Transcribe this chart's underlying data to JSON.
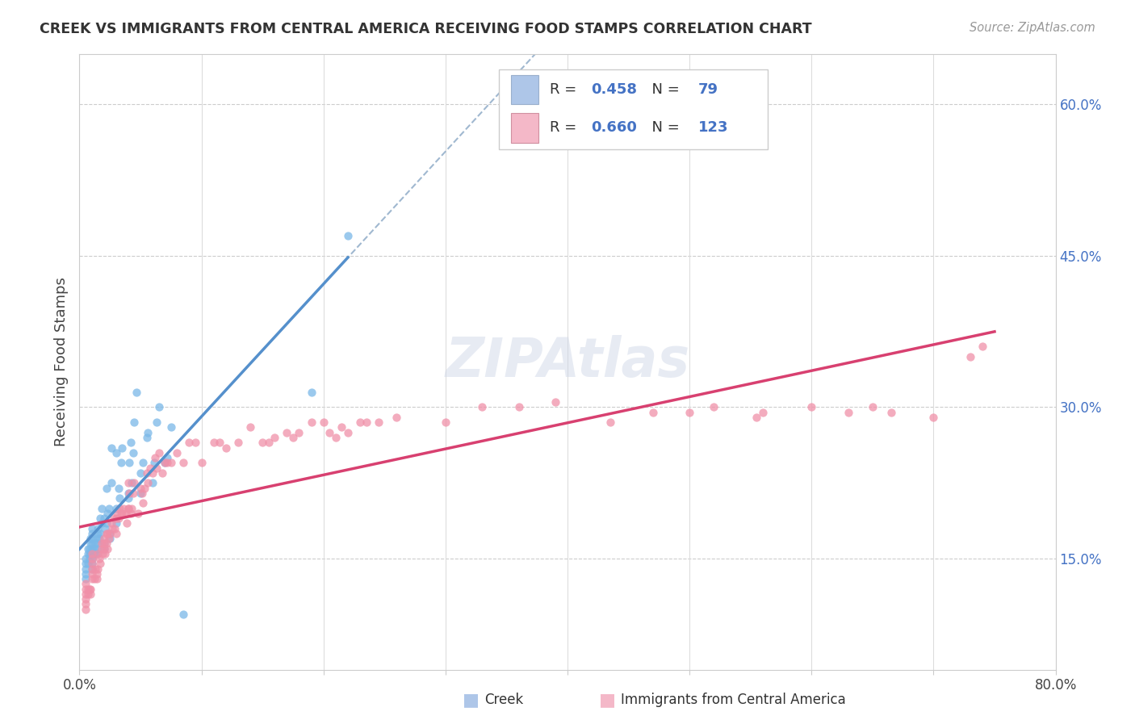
{
  "title": "CREEK VS IMMIGRANTS FROM CENTRAL AMERICA RECEIVING FOOD STAMPS CORRELATION CHART",
  "source_text": "Source: ZipAtlas.com",
  "ylabel": "Receiving Food Stamps",
  "x_min": 0.0,
  "x_max": 0.8,
  "y_min": 0.04,
  "y_max": 0.65,
  "x_ticks": [
    0.0,
    0.1,
    0.2,
    0.3,
    0.4,
    0.5,
    0.6,
    0.7,
    0.8
  ],
  "y_ticks_right": [
    0.15,
    0.3,
    0.45,
    0.6
  ],
  "y_tick_labels_right": [
    "15.0%",
    "30.0%",
    "45.0%",
    "60.0%"
  ],
  "legend_color1": "#aec6e8",
  "legend_color2": "#f4b8c8",
  "scatter_color1": "#7ab8e8",
  "scatter_color2": "#f090a8",
  "trendline_color1": "#5590cc",
  "trendline_color2": "#d84070",
  "dashed_line_color": "#a0b8d0",
  "creek_x": [
    0.005,
    0.005,
    0.005,
    0.005,
    0.005,
    0.007,
    0.007,
    0.007,
    0.008,
    0.008,
    0.008,
    0.009,
    0.009,
    0.009,
    0.01,
    0.01,
    0.01,
    0.01,
    0.01,
    0.01,
    0.01,
    0.01,
    0.01,
    0.012,
    0.012,
    0.013,
    0.014,
    0.014,
    0.015,
    0.015,
    0.015,
    0.015,
    0.016,
    0.017,
    0.017,
    0.018,
    0.018,
    0.02,
    0.02,
    0.02,
    0.021,
    0.022,
    0.022,
    0.023,
    0.024,
    0.025,
    0.025,
    0.026,
    0.026,
    0.03,
    0.03,
    0.03,
    0.032,
    0.033,
    0.034,
    0.035,
    0.04,
    0.04,
    0.041,
    0.042,
    0.043,
    0.044,
    0.045,
    0.047,
    0.05,
    0.05,
    0.052,
    0.055,
    0.056,
    0.06,
    0.061,
    0.063,
    0.065,
    0.07,
    0.072,
    0.075,
    0.085,
    0.19,
    0.22
  ],
  "creek_y": [
    0.13,
    0.135,
    0.14,
    0.145,
    0.15,
    0.145,
    0.155,
    0.16,
    0.15,
    0.155,
    0.16,
    0.155,
    0.165,
    0.17,
    0.14,
    0.145,
    0.15,
    0.155,
    0.16,
    0.165,
    0.17,
    0.175,
    0.18,
    0.155,
    0.16,
    0.165,
    0.155,
    0.16,
    0.165,
    0.17,
    0.175,
    0.18,
    0.17,
    0.175,
    0.19,
    0.185,
    0.2,
    0.16,
    0.165,
    0.19,
    0.18,
    0.185,
    0.22,
    0.195,
    0.2,
    0.17,
    0.175,
    0.225,
    0.26,
    0.185,
    0.2,
    0.255,
    0.22,
    0.21,
    0.245,
    0.26,
    0.21,
    0.215,
    0.245,
    0.265,
    0.225,
    0.255,
    0.285,
    0.315,
    0.215,
    0.235,
    0.245,
    0.27,
    0.275,
    0.225,
    0.245,
    0.285,
    0.3,
    0.245,
    0.25,
    0.28,
    0.095,
    0.315,
    0.47
  ],
  "central_x": [
    0.005,
    0.005,
    0.005,
    0.005,
    0.005,
    0.005,
    0.007,
    0.007,
    0.008,
    0.009,
    0.009,
    0.01,
    0.01,
    0.01,
    0.01,
    0.01,
    0.01,
    0.012,
    0.013,
    0.014,
    0.014,
    0.015,
    0.015,
    0.016,
    0.017,
    0.018,
    0.018,
    0.019,
    0.02,
    0.02,
    0.02,
    0.021,
    0.022,
    0.022,
    0.023,
    0.023,
    0.024,
    0.025,
    0.026,
    0.027,
    0.028,
    0.029,
    0.03,
    0.03,
    0.031,
    0.032,
    0.033,
    0.034,
    0.035,
    0.036,
    0.038,
    0.039,
    0.04,
    0.04,
    0.04,
    0.041,
    0.042,
    0.043,
    0.044,
    0.045,
    0.048,
    0.05,
    0.051,
    0.052,
    0.053,
    0.055,
    0.056,
    0.058,
    0.06,
    0.062,
    0.063,
    0.065,
    0.068,
    0.07,
    0.072,
    0.075,
    0.08,
    0.085,
    0.09,
    0.095,
    0.1,
    0.11,
    0.115,
    0.12,
    0.13,
    0.14,
    0.15,
    0.155,
    0.16,
    0.17,
    0.175,
    0.18,
    0.19,
    0.2,
    0.205,
    0.21,
    0.215,
    0.22,
    0.23,
    0.235,
    0.245,
    0.26,
    0.3,
    0.33,
    0.36,
    0.39,
    0.435,
    0.47,
    0.5,
    0.52,
    0.555,
    0.56,
    0.6,
    0.63,
    0.65,
    0.665,
    0.7,
    0.73,
    0.74
  ],
  "central_y": [
    0.1,
    0.105,
    0.11,
    0.115,
    0.12,
    0.125,
    0.115,
    0.12,
    0.12,
    0.115,
    0.12,
    0.13,
    0.135,
    0.14,
    0.145,
    0.15,
    0.155,
    0.13,
    0.14,
    0.13,
    0.135,
    0.14,
    0.155,
    0.15,
    0.145,
    0.16,
    0.165,
    0.155,
    0.16,
    0.165,
    0.17,
    0.155,
    0.175,
    0.165,
    0.16,
    0.175,
    0.17,
    0.175,
    0.185,
    0.18,
    0.19,
    0.18,
    0.19,
    0.175,
    0.195,
    0.19,
    0.2,
    0.195,
    0.195,
    0.2,
    0.195,
    0.185,
    0.2,
    0.2,
    0.225,
    0.215,
    0.195,
    0.2,
    0.215,
    0.225,
    0.195,
    0.22,
    0.215,
    0.205,
    0.22,
    0.235,
    0.225,
    0.24,
    0.235,
    0.25,
    0.24,
    0.255,
    0.235,
    0.245,
    0.245,
    0.245,
    0.255,
    0.245,
    0.265,
    0.265,
    0.245,
    0.265,
    0.265,
    0.26,
    0.265,
    0.28,
    0.265,
    0.265,
    0.27,
    0.275,
    0.27,
    0.275,
    0.285,
    0.285,
    0.275,
    0.27,
    0.28,
    0.275,
    0.285,
    0.285,
    0.285,
    0.29,
    0.285,
    0.3,
    0.3,
    0.305,
    0.285,
    0.295,
    0.295,
    0.3,
    0.29,
    0.295,
    0.3,
    0.295,
    0.3,
    0.295,
    0.29,
    0.35,
    0.36
  ]
}
